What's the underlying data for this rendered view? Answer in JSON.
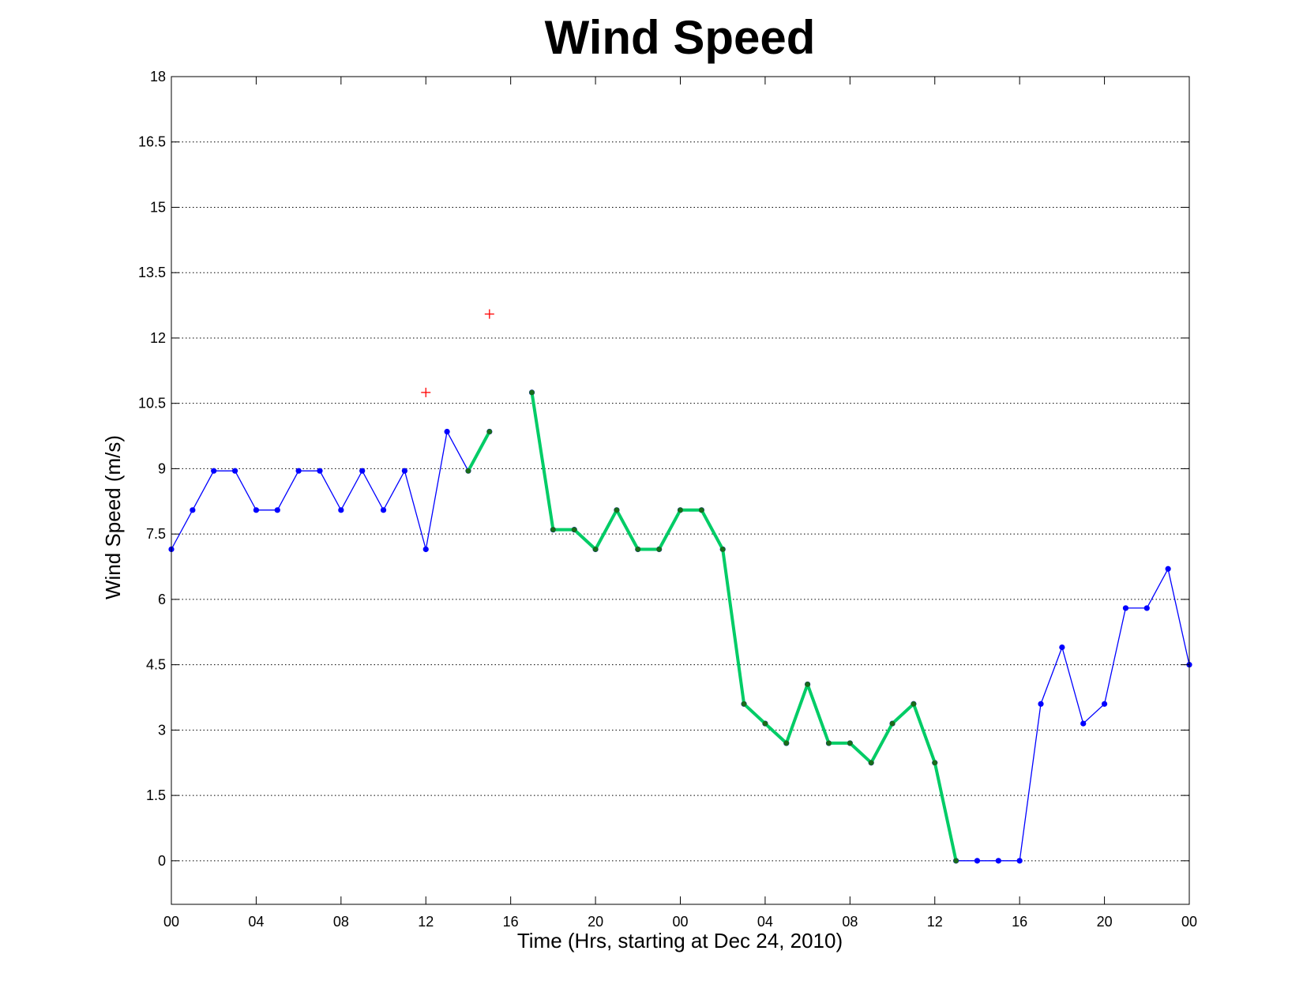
{
  "chart_data": {
    "type": "line",
    "title": "Wind Speed",
    "xlabel": "Time (Hrs, starting at Dec 24, 2010)",
    "ylabel": "Wind Speed (m/s)",
    "xlim": [
      0,
      48
    ],
    "ylim": [
      -1,
      18
    ],
    "grid": "horizontal-dotted",
    "x_ticks": [
      0,
      4,
      8,
      12,
      16,
      20,
      24,
      28,
      32,
      36,
      40,
      44,
      48
    ],
    "x_tick_labels": [
      "00",
      "04",
      "08",
      "12",
      "16",
      "20",
      "00",
      "04",
      "08",
      "12",
      "16",
      "20",
      "00"
    ],
    "y_ticks": [
      0,
      1.5,
      3,
      4.5,
      6,
      7.5,
      9,
      10.5,
      12,
      13.5,
      15,
      16.5,
      18
    ],
    "y_tick_labels": [
      "0",
      "1.5",
      "3",
      "4.5",
      "6",
      "7.5",
      "9",
      "10.5",
      "12",
      "13.5",
      "15",
      "16.5",
      "18"
    ],
    "colors": {
      "observed": "#0000ff",
      "highlighted_line": "#00cc66",
      "highlighted_marker": "#1a6b1a",
      "outlier": "#ff0000"
    },
    "series": [
      {
        "style": "observed",
        "x": [
          0,
          1,
          2,
          3,
          4,
          5,
          6,
          7,
          8,
          9,
          10,
          11,
          12,
          13,
          14,
          15,
          16,
          17,
          18,
          19,
          20,
          21,
          22,
          23,
          24,
          25,
          26,
          27,
          28,
          29,
          30,
          31,
          32,
          33,
          34,
          35,
          36,
          37,
          38,
          39,
          40,
          41,
          42,
          43,
          44,
          45,
          46,
          47,
          48
        ],
        "y": [
          7.15,
          8.05,
          8.95,
          8.95,
          8.05,
          8.05,
          8.95,
          8.95,
          8.05,
          8.95,
          8.05,
          8.95,
          7.15,
          9.85,
          8.95,
          9.85,
          null,
          10.75,
          7.6,
          7.6,
          7.15,
          8.05,
          7.15,
          7.15,
          8.05,
          8.05,
          7.15,
          3.6,
          3.15,
          2.7,
          4.05,
          2.7,
          2.7,
          2.25,
          3.15,
          3.6,
          2.25,
          0,
          0,
          0,
          0,
          3.6,
          4.9,
          3.15,
          3.6,
          5.8,
          5.8,
          6.7,
          4.5
        ]
      },
      {
        "style": "highlighted",
        "x": [
          14,
          15,
          null,
          17,
          18,
          19,
          20,
          21,
          22,
          23,
          24,
          25,
          26,
          27,
          28,
          29,
          30,
          31,
          32,
          33,
          34,
          35,
          36,
          37
        ],
        "y": [
          8.95,
          9.85,
          null,
          10.75,
          7.6,
          7.6,
          7.15,
          8.05,
          7.15,
          7.15,
          8.05,
          8.05,
          7.15,
          3.6,
          3.15,
          2.7,
          4.05,
          2.7,
          2.7,
          2.25,
          3.15,
          3.6,
          2.25,
          0
        ]
      },
      {
        "style": "outlier",
        "x": [
          12,
          15
        ],
        "y": [
          10.75,
          12.55
        ]
      }
    ]
  }
}
